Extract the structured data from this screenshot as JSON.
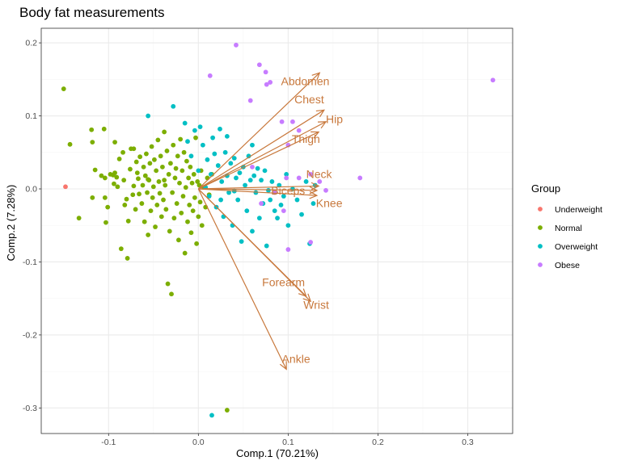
{
  "colors": {
    "underweight": "#F8766D",
    "normal": "#7CAE00",
    "overweight": "#00BFC4",
    "obese": "#C77CFF",
    "arrow": "#C8783C",
    "grid_major": "#EBEBEB",
    "grid_minor": "#F5F5F5",
    "panel_border": "#333333"
  },
  "chart_data": {
    "type": "scatter",
    "title": "Body fat measurements",
    "xlabel": "Comp.1 (70.21%)",
    "ylabel": "Comp.2 (7.28%)",
    "xlim": [
      -0.175,
      0.35
    ],
    "ylim": [
      -0.335,
      0.22
    ],
    "x_ticks": [
      -0.1,
      0.0,
      0.1,
      0.2,
      0.3
    ],
    "x_tick_labels": [
      "-0.1",
      "0.0",
      "0.1",
      "0.2",
      "0.3"
    ],
    "y_ticks": [
      -0.3,
      -0.2,
      -0.1,
      0.0,
      0.1,
      0.2
    ],
    "y_tick_labels": [
      "-0.3",
      "-0.2",
      "-0.1",
      "0.0",
      "0.1",
      "0.2"
    ],
    "grid": true,
    "legend": {
      "title": "Group",
      "placement": "right",
      "entries": [
        "Underweight",
        "Normal",
        "Overweight",
        "Obese"
      ]
    },
    "series": [
      {
        "name": "Underweight",
        "color_key": "underweight",
        "points": [
          [
            -0.148,
            0.003
          ]
        ]
      },
      {
        "name": "Normal",
        "color_key": "normal",
        "points": [
          [
            -0.15,
            0.137
          ],
          [
            -0.143,
            0.061
          ],
          [
            -0.133,
            -0.04
          ],
          [
            -0.119,
            0.081
          ],
          [
            -0.118,
            0.064
          ],
          [
            -0.118,
            -0.012
          ],
          [
            -0.115,
            0.026
          ],
          [
            -0.105,
            0.082
          ],
          [
            -0.104,
            0.015
          ],
          [
            -0.104,
            -0.012
          ],
          [
            -0.103,
            -0.046
          ],
          [
            -0.101,
            -0.025
          ],
          [
            -0.098,
            0.02
          ],
          [
            -0.095,
            0.019
          ],
          [
            -0.094,
            0.007
          ],
          [
            -0.093,
            0.022
          ],
          [
            -0.093,
            0.064
          ],
          [
            -0.091,
            0.016
          ],
          [
            -0.09,
            0.003
          ],
          [
            -0.088,
            0.041
          ],
          [
            -0.086,
            -0.082
          ],
          [
            -0.084,
            0.05
          ],
          [
            -0.083,
            0.012
          ],
          [
            -0.082,
            -0.022
          ],
          [
            -0.08,
            -0.014
          ],
          [
            -0.079,
            -0.095
          ],
          [
            -0.078,
            -0.044
          ],
          [
            -0.076,
            0.027
          ],
          [
            -0.075,
            0.055
          ],
          [
            -0.073,
            -0.008
          ],
          [
            -0.072,
            0.004
          ],
          [
            -0.072,
            0.055
          ],
          [
            -0.07,
            -0.028
          ],
          [
            -0.068,
            0.022
          ],
          [
            -0.067,
            0.014
          ],
          [
            -0.066,
            -0.007
          ],
          [
            -0.065,
            0.044
          ],
          [
            -0.063,
            -0.02
          ],
          [
            -0.062,
            0.005
          ],
          [
            -0.061,
            0.03
          ],
          [
            -0.06,
            -0.045
          ],
          [
            -0.059,
            0.018
          ],
          [
            -0.058,
            0.048
          ],
          [
            -0.057,
            -0.005
          ],
          [
            -0.056,
            -0.063
          ],
          [
            -0.055,
            0.012
          ],
          [
            -0.054,
            0.035
          ],
          [
            -0.053,
            -0.03
          ],
          [
            -0.052,
            0.058
          ],
          [
            -0.051,
            -0.012
          ],
          [
            -0.05,
            0.003
          ],
          [
            -0.049,
            0.04
          ],
          [
            -0.048,
            -0.052
          ],
          [
            -0.047,
            0.025
          ],
          [
            -0.046,
            -0.022
          ],
          [
            -0.045,
            0.067
          ],
          [
            -0.044,
            0.01
          ],
          [
            -0.043,
            -0.006
          ],
          [
            -0.042,
            0.045
          ],
          [
            -0.041,
            -0.038
          ],
          [
            -0.04,
            0.03
          ],
          [
            -0.039,
            -0.015
          ],
          [
            -0.038,
            0.078
          ],
          [
            -0.037,
            0.005
          ],
          [
            -0.036,
            -0.028
          ],
          [
            -0.035,
            0.052
          ],
          [
            -0.034,
            -0.13
          ],
          [
            -0.033,
            0.02
          ],
          [
            -0.032,
            -0.058
          ],
          [
            -0.031,
            0.035
          ],
          [
            -0.03,
            -0.144
          ],
          [
            -0.029,
            -0.005
          ],
          [
            -0.028,
            0.06
          ],
          [
            -0.027,
            -0.04
          ],
          [
            -0.026,
            0.015
          ],
          [
            -0.025,
            0.028
          ],
          [
            -0.024,
            -0.02
          ],
          [
            -0.023,
            0.045
          ],
          [
            -0.022,
            -0.07
          ],
          [
            -0.021,
            0.008
          ],
          [
            -0.02,
            0.068
          ],
          [
            -0.019,
            -0.033
          ],
          [
            -0.018,
            0.025
          ],
          [
            -0.017,
            -0.01
          ],
          [
            -0.016,
            0.05
          ],
          [
            -0.015,
            -0.088
          ],
          [
            -0.014,
            0.002
          ],
          [
            -0.013,
            0.038
          ],
          [
            -0.012,
            -0.045
          ],
          [
            -0.011,
            0.015
          ],
          [
            -0.01,
            -0.022
          ],
          [
            -0.009,
            0.03
          ],
          [
            -0.008,
            -0.06
          ],
          [
            -0.007,
            0.008
          ],
          [
            -0.006,
            -0.03
          ],
          [
            -0.005,
            0.02
          ],
          [
            -0.004,
            -0.012
          ],
          [
            -0.003,
            0.07
          ],
          [
            -0.002,
            -0.075
          ],
          [
            -0.001,
            0.01
          ],
          [
            0.0,
            -0.038
          ],
          [
            0.001,
            0.005
          ],
          [
            0.002,
            -0.018
          ],
          [
            0.003,
            0.025
          ],
          [
            0.004,
            -0.05
          ],
          [
            0.006,
            0.002
          ],
          [
            0.008,
            -0.025
          ],
          [
            0.01,
            0.015
          ],
          [
            0.012,
            -0.008
          ],
          [
            0.015,
            0.02
          ],
          [
            0.032,
            -0.303
          ],
          [
            -0.056,
            0.013
          ],
          [
            -0.108,
            0.018
          ],
          [
            -0.069,
            0.037
          ],
          [
            -0.038,
            0.012
          ]
        ]
      },
      {
        "name": "Overweight",
        "color_key": "overweight",
        "points": [
          [
            -0.056,
            0.1
          ],
          [
            -0.028,
            0.113
          ],
          [
            -0.015,
            0.09
          ],
          [
            -0.012,
            0.065
          ],
          [
            -0.008,
            0.045
          ],
          [
            -0.004,
            0.08
          ],
          [
            0.0,
            0.025
          ],
          [
            0.002,
            0.085
          ],
          [
            0.005,
            0.06
          ],
          [
            0.008,
            0.002
          ],
          [
            0.01,
            0.04
          ],
          [
            0.012,
            -0.01
          ],
          [
            0.014,
            0.02
          ],
          [
            0.016,
            0.07
          ],
          [
            0.018,
            0.048
          ],
          [
            0.02,
            -0.025
          ],
          [
            0.022,
            0.032
          ],
          [
            0.024,
            0.082
          ],
          [
            0.026,
            0.01
          ],
          [
            0.028,
            -0.038
          ],
          [
            0.03,
            0.05
          ],
          [
            0.032,
            0.018
          ],
          [
            0.034,
            -0.005
          ],
          [
            0.036,
            0.035
          ],
          [
            0.038,
            -0.05
          ],
          [
            0.04,
            0.042
          ],
          [
            0.042,
            0.015
          ],
          [
            0.044,
            -0.015
          ],
          [
            0.046,
            0.022
          ],
          [
            0.048,
            -0.072
          ],
          [
            0.05,
            0.03
          ],
          [
            0.052,
            0.005
          ],
          [
            0.054,
            -0.03
          ],
          [
            0.056,
            0.045
          ],
          [
            0.058,
            0.012
          ],
          [
            0.06,
            -0.058
          ],
          [
            0.062,
            0.018
          ],
          [
            0.064,
            -0.005
          ],
          [
            0.066,
            0.028
          ],
          [
            0.068,
            -0.04
          ],
          [
            0.07,
            0.012
          ],
          [
            0.072,
            -0.02
          ],
          [
            0.074,
            0.025
          ],
          [
            0.076,
            -0.078
          ],
          [
            0.078,
            -0.002
          ],
          [
            0.08,
            -0.015
          ],
          [
            0.082,
            0.01
          ],
          [
            0.085,
            -0.03
          ],
          [
            0.088,
            -0.04
          ],
          [
            0.09,
            0.005
          ],
          [
            0.092,
            -0.022
          ],
          [
            0.095,
            -0.01
          ],
          [
            0.098,
            0.02
          ],
          [
            0.1,
            -0.05
          ],
          [
            0.105,
            0.0
          ],
          [
            0.11,
            -0.015
          ],
          [
            0.115,
            -0.035
          ],
          [
            0.12,
            0.01
          ],
          [
            0.124,
            -0.075
          ],
          [
            0.128,
            -0.02
          ],
          [
            0.13,
            0.005
          ],
          [
            0.015,
            -0.31
          ],
          [
            0.025,
            -0.015
          ],
          [
            0.04,
            -0.003
          ],
          [
            0.06,
            0.06
          ],
          [
            0.032,
            0.072
          ]
        ]
      },
      {
        "name": "Obese",
        "color_key": "obese",
        "points": [
          [
            0.042,
            0.197
          ],
          [
            0.013,
            0.155
          ],
          [
            0.068,
            0.17
          ],
          [
            0.075,
            0.16
          ],
          [
            0.076,
            0.143
          ],
          [
            0.08,
            0.146
          ],
          [
            0.058,
            0.121
          ],
          [
            0.093,
            0.092
          ],
          [
            0.105,
            0.092
          ],
          [
            0.112,
            0.08
          ],
          [
            0.1,
            0.06
          ],
          [
            0.098,
            0.015
          ],
          [
            0.112,
            0.015
          ],
          [
            0.125,
            0.02
          ],
          [
            0.135,
            0.01
          ],
          [
            0.142,
            -0.002
          ],
          [
            0.18,
            0.015
          ],
          [
            0.328,
            0.149
          ],
          [
            0.06,
            0.03
          ],
          [
            0.095,
            -0.03
          ],
          [
            0.1,
            -0.083
          ],
          [
            0.125,
            -0.073
          ],
          [
            0.085,
            -0.005
          ],
          [
            0.07,
            -0.02
          ]
        ]
      }
    ],
    "loadings": [
      {
        "label": "Abdomen",
        "x": 0.135,
        "y": 0.159,
        "label_x": 0.092,
        "label_y": 0.142
      },
      {
        "label": "Chest",
        "x": 0.14,
        "y": 0.108,
        "label_x": 0.107,
        "label_y": 0.117
      },
      {
        "label": "Hip",
        "x": 0.142,
        "y": 0.092,
        "label_x": 0.142,
        "label_y": 0.09
      },
      {
        "label": "Thigh",
        "x": 0.134,
        "y": 0.078,
        "label_x": 0.104,
        "label_y": 0.063
      },
      {
        "label": "Neck",
        "x": 0.134,
        "y": 0.004,
        "label_x": 0.12,
        "label_y": 0.015
      },
      {
        "label": "Biceps",
        "x": 0.132,
        "y": -0.002,
        "label_x": 0.081,
        "label_y": -0.008
      },
      {
        "label": "Knee",
        "x": 0.132,
        "y": -0.009,
        "label_x": 0.131,
        "label_y": -0.025
      },
      {
        "label": "Forearm",
        "x": 0.12,
        "y": -0.147,
        "label_x": 0.071,
        "label_y": -0.133
      },
      {
        "label": "Wrist",
        "x": 0.125,
        "y": -0.154,
        "label_x": 0.117,
        "label_y": -0.164
      },
      {
        "label": "Ankle",
        "x": 0.098,
        "y": -0.247,
        "label_x": 0.093,
        "label_y": -0.238
      }
    ]
  }
}
